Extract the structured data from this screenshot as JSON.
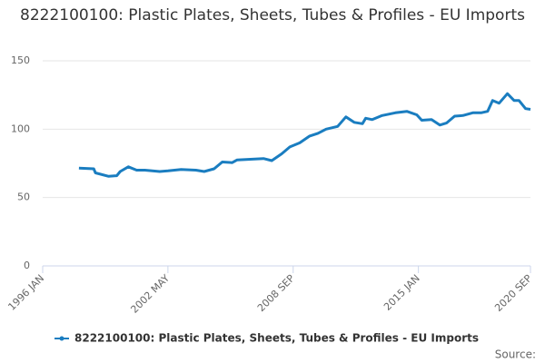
{
  "chart_data": {
    "type": "line",
    "title": "8222100100: Plastic Plates, Sheets, Tubes & Profiles - EU Imports",
    "source_label": "Source:",
    "x": [
      "1997-11",
      "1998-08",
      "1998-09",
      "1999-05",
      "1999-10",
      "1999-12",
      "2000-05",
      "2000-10",
      "2001-03",
      "2001-12",
      "2002-05",
      "2003-01",
      "2003-10",
      "2004-03",
      "2004-09",
      "2005-02",
      "2005-08",
      "2005-11",
      "2006-07",
      "2007-03",
      "2007-08",
      "2008-02",
      "2008-07",
      "2009-01",
      "2009-07",
      "2009-12",
      "2010-05",
      "2010-12",
      "2011-05",
      "2011-10",
      "2012-03",
      "2012-05",
      "2012-09",
      "2013-03",
      "2013-11",
      "2014-06",
      "2014-12",
      "2015-03",
      "2015-09",
      "2016-02",
      "2016-06",
      "2016-11",
      "2017-04",
      "2017-10",
      "2018-03",
      "2018-07",
      "2018-10",
      "2019-02",
      "2019-07",
      "2019-11",
      "2020-02",
      "2020-06",
      "2020-09"
    ],
    "series": [
      {
        "name": "8222100100: Plastic Plates, Sheets, Tubes & Profiles - EU Imports",
        "color": "#1a7dc0",
        "values": [
          71.5,
          71,
          68,
          65.5,
          66,
          69,
          72.5,
          70,
          70,
          69,
          69.5,
          70.5,
          70,
          69,
          71,
          76,
          75.5,
          77.5,
          78,
          78.5,
          77,
          82,
          87,
          90,
          95,
          97,
          100,
          102,
          109,
          105,
          104,
          108,
          107,
          110,
          112,
          113,
          110.5,
          106.5,
          107,
          103,
          104.5,
          109.5,
          110,
          112,
          112,
          113,
          121,
          119,
          126,
          121,
          121,
          115,
          114.5
        ]
      }
    ],
    "xlim": [
      "1996-01",
      "2020-09"
    ],
    "xticks": [
      {
        "value": "1996-01",
        "label": "1996 JAN"
      },
      {
        "value": "2002-05",
        "label": "2002 MAY"
      },
      {
        "value": "2008-09",
        "label": "2008 SEP"
      },
      {
        "value": "2015-01",
        "label": "2015 JAN"
      },
      {
        "value": "2020-09",
        "label": "2020 SEP"
      }
    ],
    "ylim": [
      0,
      150
    ],
    "yticks": [
      0,
      50,
      100,
      150
    ],
    "grid": true,
    "legend": "bottom"
  }
}
